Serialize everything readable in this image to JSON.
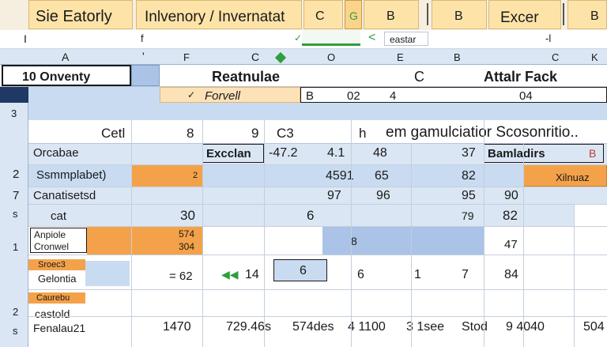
{
  "colors": {
    "tab_bg": "#fde3a7",
    "tab_active": "#fbd38a",
    "header_blue": "#dbe6f4",
    "sel_blue": "#aac3e6",
    "dark_corner": "#1f3864",
    "orange": "#f4a24a",
    "pale_orange": "#fde2b8",
    "light_blue": "#c9dbf0",
    "green": "#2e9e3e"
  },
  "tabs": {
    "t1": "Sie Eatorly",
    "t2": "Inlvenory / Invernatat",
    "t3": "C",
    "t4": "G",
    "t5": "B",
    "t6": "B",
    "t7": "Excer",
    "t8": "B"
  },
  "toolbar": {
    "left_mark": "I",
    "caret": "f",
    "search_label": "eastar",
    "right_mark": "-l",
    "arrow": "<",
    "check": "✓"
  },
  "col_headers": {
    "a": "A",
    "dot": "'",
    "f": "F",
    "c": "C",
    "o": "O",
    "e": "E",
    "b": "B",
    "c2": "C",
    "k": "K"
  },
  "band": {
    "name_box": "10 Onventy",
    "title": "Reatnulae",
    "c_label": "C",
    "right_title": "Attalr Fack"
  },
  "formula": {
    "check": "✓",
    "label": "Forvell",
    "v1": "B",
    "v2": "02",
    "v3": "4",
    "v4": "04"
  },
  "rows": {
    "r3": "3",
    "r2": "2",
    "r7": "7",
    "rs": "s",
    "r1": "1",
    "r2b": "2",
    "rs2": "s"
  },
  "row_labels": {
    "cell": "Cetl",
    "b8": "8",
    "n9": "9",
    "c3": "C3",
    "h": "h",
    "header_text": "em gamulciatior Scosonritio..",
    "ocabae": "Orcabae",
    "excelan": "Excclan",
    "v472": "-47.2",
    "v41": "4.1",
    "v48": "48",
    "v37": "37",
    "bamladirs": "Bamladirs",
    "b_icon": "B",
    "samplabet": "Ssmmplabet)",
    "v2": "2",
    "v4591": "4591",
    "v65": "65",
    "v82": "82",
    "xlinuaz": "Xilnuaz",
    "canatise": "Canatisetsd",
    "v97": "97",
    "v96": "96",
    "v95": "95",
    "v90": "90",
    "cat": "cat",
    "v30": "30",
    "v6": "6",
    "v79": "79",
    "v82b": "82",
    "anpiole": "Anpiole",
    "cronwel": "Cronwel",
    "v574": "574",
    "v304": "304",
    "v8": "8",
    "v47": "47",
    "sroec": "Sroec3",
    "gelontia": "Gelontia",
    "eq62": "= 62",
    "v14": "14",
    "v6b": "6",
    "v6c": "6",
    "v1": "1",
    "v7": "7",
    "v84": "84",
    "caurebu": "Caurebu",
    "castold": "castold",
    "fenalau": "Fenalau21",
    "b1": "1470",
    "b2": "729.46s",
    "b3": "574des",
    "b4": "4 1100",
    "b5": "3 1see",
    "b6": "Stod",
    "b7": "9 4040",
    "b8v": "504"
  }
}
